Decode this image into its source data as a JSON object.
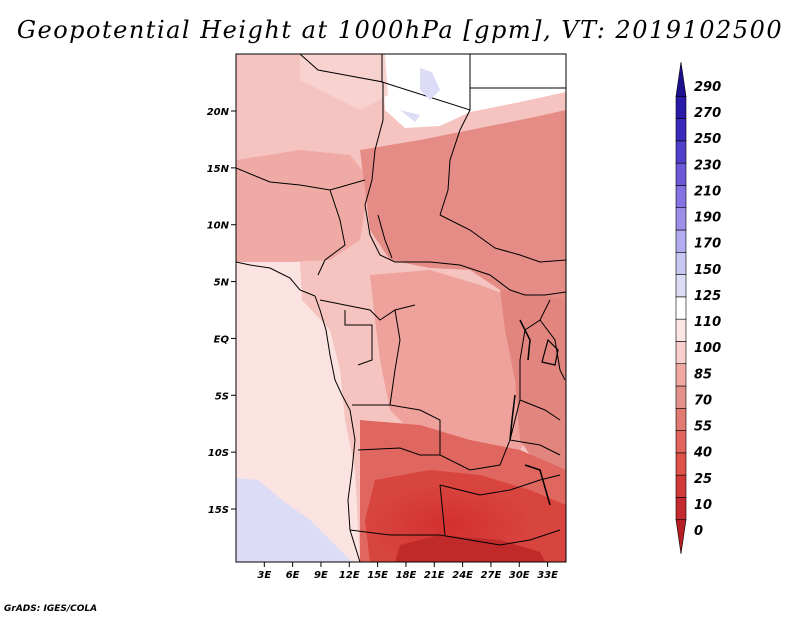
{
  "title": "Geopotential Height at 1000hPa [gpm], VT: 2019102500",
  "credit": "GrADS: IGES/COLA",
  "map": {
    "variable": "Geopotential Height",
    "level": "1000hPa",
    "units": "gpm",
    "valid_time": "2019102500",
    "region": "Central and Southern-Central Africa",
    "lon_labels": [
      "3E",
      "6E",
      "9E",
      "12E",
      "15E",
      "18E",
      "21E",
      "24E",
      "27E",
      "30E",
      "33E"
    ],
    "lat_labels": [
      "20N",
      "15N",
      "10N",
      "5N",
      "EQ",
      "5S",
      "10S",
      "15S"
    ]
  },
  "colorbar": {
    "levels": [
      "0",
      "10",
      "25",
      "40",
      "55",
      "70",
      "85",
      "100",
      "110",
      "125",
      "150",
      "170",
      "190",
      "210",
      "230",
      "250",
      "270",
      "290"
    ],
    "colors": [
      "#b41e24",
      "#c52a2e",
      "#d33a37",
      "#de5248",
      "#e2655d",
      "#e17b72",
      "#e49189",
      "#f0a8a3",
      "#f8cfcc",
      "#fbe6e4",
      "#ffffff",
      "#dcdcf6",
      "#c7c7f2",
      "#b2abef",
      "#9b8fea",
      "#8474e3",
      "#6b59d9",
      "#5140cc",
      "#3b29bb",
      "#2a1aa8",
      "#1d108e"
    ]
  }
}
